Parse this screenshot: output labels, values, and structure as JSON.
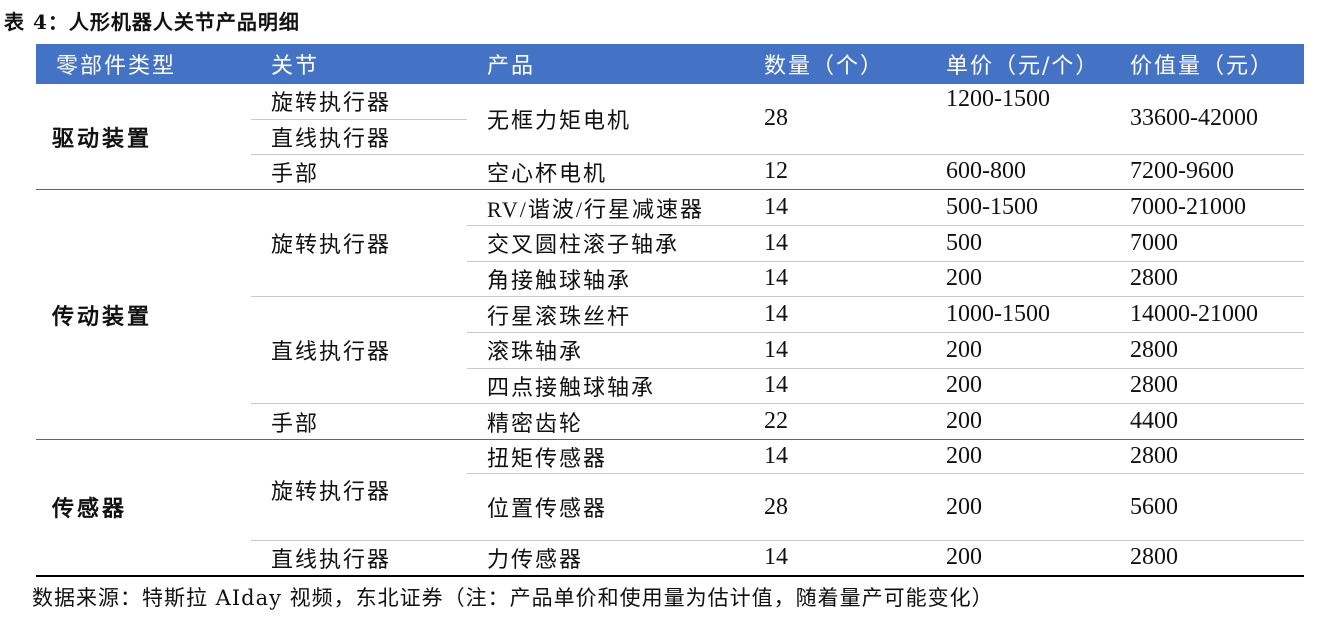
{
  "title": "表 4：人形机器人关节产品明细",
  "headers": [
    "零部件类型",
    "关节",
    "产品",
    "数量（个）",
    "单价（元/个）",
    "价值量（元）"
  ],
  "groups": {
    "drive": "驱动装置",
    "transmission": "传动装置",
    "sensor": "传感器"
  },
  "rows": [
    {
      "joint": "旋转执行器",
      "product": "无框力矩电机",
      "qty": "28",
      "price": "1200-1500",
      "value": "33600-42000"
    },
    {
      "joint": "直线执行器"
    },
    {
      "joint": "手部",
      "product": "空心杯电机",
      "qty": "12",
      "price": "600-800",
      "value": "7200-9600"
    },
    {
      "joint": "旋转执行器",
      "product": "RV/谐波/行星减速器",
      "qty": "14",
      "price": "500-1500",
      "value": "7000-21000"
    },
    {
      "product": "交叉圆柱滚子轴承",
      "qty": "14",
      "price": "500",
      "value": "7000"
    },
    {
      "product": "角接触球轴承",
      "qty": "14",
      "price": "200",
      "value": "2800"
    },
    {
      "joint": "直线执行器",
      "product": "行星滚珠丝杆",
      "qty": "14",
      "price": "1000-1500",
      "value": "14000-21000"
    },
    {
      "product": "滚珠轴承",
      "qty": "14",
      "price": "200",
      "value": "2800"
    },
    {
      "product": "四点接触球轴承",
      "qty": "14",
      "price": "200",
      "value": "2800"
    },
    {
      "joint": "手部",
      "product": "精密齿轮",
      "qty": "22",
      "price": "200",
      "value": "4400"
    },
    {
      "joint": "旋转执行器",
      "product": "扭矩传感器",
      "qty": "14",
      "price": "200",
      "value": "2800"
    },
    {
      "product": "位置传感器",
      "qty": "28",
      "price": "200",
      "value": "5600"
    },
    {
      "joint": "直线执行器",
      "product": "力传感器",
      "qty": "14",
      "price": "200",
      "value": "2800"
    }
  ],
  "source": "数据来源：特斯拉 AIday 视频，东北证券（注：产品单价和使用量为估计值，随着量产可能变化）",
  "colors": {
    "header_bg": "#4472c4",
    "header_text": "#ffffff",
    "rule": "#000000"
  }
}
